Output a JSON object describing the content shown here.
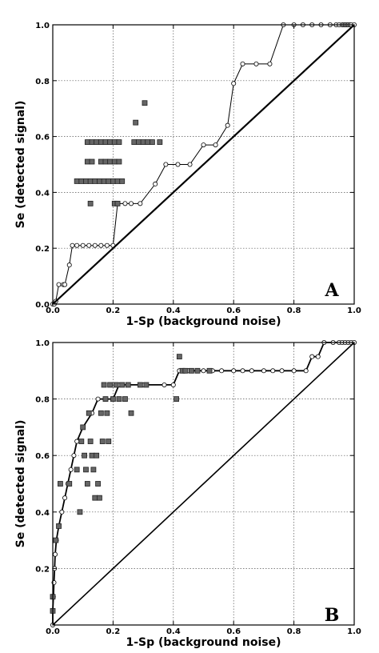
{
  "chart_data": [
    {
      "type": "scatter",
      "panel_label": "A",
      "xlabel": "1-Sp (background noise)",
      "ylabel": "Se (detected signal)",
      "xlim": [
        0,
        1
      ],
      "ylim": [
        0,
        1
      ],
      "xticks": [
        "0.0",
        "0.2",
        "0.4",
        "0.6",
        "0.8",
        "1.0"
      ],
      "yticks": [
        "0.0",
        "0.2",
        "0.4",
        "0.6",
        "0.8",
        "1.0"
      ],
      "grid": true,
      "series": [
        {
          "kind": "step-line",
          "points": [
            [
              0,
              0
            ],
            [
              0.005,
              0
            ],
            [
              0.01,
              0.01
            ],
            [
              0.02,
              0.07
            ],
            [
              0.035,
              0.07
            ],
            [
              0.04,
              0.07
            ],
            [
              0.055,
              0.14
            ],
            [
              0.065,
              0.21
            ],
            [
              0.08,
              0.21
            ],
            [
              0.1,
              0.21
            ],
            [
              0.12,
              0.21
            ],
            [
              0.14,
              0.21
            ],
            [
              0.16,
              0.21
            ],
            [
              0.18,
              0.21
            ],
            [
              0.2,
              0.21
            ],
            [
              0.215,
              0.36
            ],
            [
              0.24,
              0.36
            ],
            [
              0.26,
              0.36
            ],
            [
              0.29,
              0.36
            ],
            [
              0.34,
              0.43
            ],
            [
              0.375,
              0.5
            ],
            [
              0.415,
              0.5
            ],
            [
              0.455,
              0.5
            ],
            [
              0.5,
              0.57
            ],
            [
              0.54,
              0.57
            ],
            [
              0.58,
              0.64
            ],
            [
              0.6,
              0.79
            ],
            [
              0.63,
              0.86
            ],
            [
              0.675,
              0.86
            ],
            [
              0.72,
              0.86
            ],
            [
              0.765,
              1.0
            ],
            [
              0.8,
              1.0
            ],
            [
              0.83,
              1.0
            ],
            [
              0.86,
              1.0
            ],
            [
              0.89,
              1.0
            ],
            [
              0.92,
              1.0
            ],
            [
              0.94,
              1.0
            ],
            [
              0.95,
              1.0
            ],
            [
              0.96,
              1.0
            ],
            [
              0.965,
              1.0
            ],
            [
              0.97,
              1.0
            ],
            [
              0.975,
              1.0
            ],
            [
              0.98,
              1.0
            ],
            [
              0.985,
              1.0
            ],
            [
              0.99,
              1.0
            ],
            [
              1.0,
              1.0
            ]
          ]
        },
        {
          "kind": "diagonal",
          "points": [
            [
              0,
              0
            ],
            [
              1,
              1
            ]
          ]
        },
        {
          "kind": "squares",
          "points": [
            [
              0.305,
              0.72
            ],
            [
              0.275,
              0.65
            ],
            [
              0.115,
              0.58
            ],
            [
              0.13,
              0.58
            ],
            [
              0.145,
              0.58
            ],
            [
              0.16,
              0.58
            ],
            [
              0.175,
              0.58
            ],
            [
              0.19,
              0.58
            ],
            [
              0.205,
              0.58
            ],
            [
              0.22,
              0.58
            ],
            [
              0.27,
              0.58
            ],
            [
              0.285,
              0.58
            ],
            [
              0.3,
              0.58
            ],
            [
              0.315,
              0.58
            ],
            [
              0.33,
              0.58
            ],
            [
              0.355,
              0.58
            ],
            [
              0.115,
              0.51
            ],
            [
              0.13,
              0.51
            ],
            [
              0.16,
              0.51
            ],
            [
              0.175,
              0.51
            ],
            [
              0.19,
              0.51
            ],
            [
              0.205,
              0.51
            ],
            [
              0.22,
              0.51
            ],
            [
              0.08,
              0.44
            ],
            [
              0.095,
              0.44
            ],
            [
              0.11,
              0.44
            ],
            [
              0.125,
              0.44
            ],
            [
              0.14,
              0.44
            ],
            [
              0.155,
              0.44
            ],
            [
              0.17,
              0.44
            ],
            [
              0.185,
              0.44
            ],
            [
              0.2,
              0.44
            ],
            [
              0.215,
              0.44
            ],
            [
              0.23,
              0.44
            ],
            [
              0.125,
              0.36
            ],
            [
              0.205,
              0.36
            ],
            [
              0.215,
              0.36
            ]
          ]
        }
      ]
    },
    {
      "type": "scatter",
      "panel_label": "B",
      "xlabel": "1-Sp (background noise)",
      "ylabel": "Se (detected signal)",
      "xlim": [
        0,
        1
      ],
      "ylim": [
        0,
        1
      ],
      "xticks": [
        "0.0",
        "0.2",
        "0.4",
        "0.6",
        "0.8",
        "1.0"
      ],
      "yticks": [
        "0.2",
        "0.4",
        "0.6",
        "0.8",
        "1.0"
      ],
      "grid": true,
      "series": [
        {
          "kind": "curve",
          "points": [
            [
              0,
              0
            ],
            [
              0,
              0.05
            ],
            [
              0.002,
              0.1
            ],
            [
              0.004,
              0.15
            ],
            [
              0.006,
              0.2
            ],
            [
              0.008,
              0.25
            ],
            [
              0.012,
              0.3
            ],
            [
              0.02,
              0.35
            ],
            [
              0.03,
              0.4
            ],
            [
              0.04,
              0.45
            ],
            [
              0.05,
              0.5
            ],
            [
              0.06,
              0.55
            ],
            [
              0.07,
              0.6
            ],
            [
              0.08,
              0.65
            ],
            [
              0.1,
              0.7
            ],
            [
              0.13,
              0.75
            ],
            [
              0.15,
              0.8
            ],
            [
              0.2,
              0.8
            ],
            [
              0.22,
              0.85
            ],
            [
              0.3,
              0.85
            ],
            [
              0.37,
              0.85
            ],
            [
              0.4,
              0.85
            ],
            [
              0.42,
              0.9
            ],
            [
              0.45,
              0.9
            ],
            [
              0.5,
              0.9
            ],
            [
              0.53,
              0.9
            ],
            [
              0.56,
              0.9
            ],
            [
              0.6,
              0.9
            ],
            [
              0.63,
              0.9
            ],
            [
              0.66,
              0.9
            ],
            [
              0.7,
              0.9
            ],
            [
              0.73,
              0.9
            ],
            [
              0.76,
              0.9
            ],
            [
              0.8,
              0.9
            ],
            [
              0.84,
              0.9
            ],
            [
              0.86,
              0.95
            ],
            [
              0.88,
              0.95
            ],
            [
              0.9,
              1.0
            ],
            [
              0.93,
              1.0
            ],
            [
              0.95,
              1.0
            ],
            [
              0.96,
              1.0
            ],
            [
              0.97,
              1.0
            ],
            [
              0.98,
              1.0
            ],
            [
              0.99,
              1.0
            ],
            [
              1.0,
              1.0
            ]
          ]
        },
        {
          "kind": "diagonal",
          "points": [
            [
              0,
              0
            ],
            [
              1,
              1
            ]
          ]
        },
        {
          "kind": "squares",
          "points": [
            [
              0.0,
              0.05
            ],
            [
              0.0,
              0.1
            ],
            [
              0.01,
              0.3
            ],
            [
              0.02,
              0.35
            ],
            [
              0.025,
              0.5
            ],
            [
              0.055,
              0.5
            ],
            [
              0.08,
              0.55
            ],
            [
              0.09,
              0.4
            ],
            [
              0.095,
              0.65
            ],
            [
              0.1,
              0.7
            ],
            [
              0.105,
              0.6
            ],
            [
              0.11,
              0.55
            ],
            [
              0.115,
              0.5
            ],
            [
              0.12,
              0.75
            ],
            [
              0.125,
              0.65
            ],
            [
              0.13,
              0.6
            ],
            [
              0.135,
              0.55
            ],
            [
              0.14,
              0.45
            ],
            [
              0.145,
              0.6
            ],
            [
              0.15,
              0.5
            ],
            [
              0.155,
              0.45
            ],
            [
              0.16,
              0.75
            ],
            [
              0.165,
              0.65
            ],
            [
              0.17,
              0.85
            ],
            [
              0.175,
              0.8
            ],
            [
              0.18,
              0.75
            ],
            [
              0.185,
              0.65
            ],
            [
              0.19,
              0.85
            ],
            [
              0.2,
              0.8
            ],
            [
              0.21,
              0.85
            ],
            [
              0.22,
              0.8
            ],
            [
              0.23,
              0.85
            ],
            [
              0.24,
              0.8
            ],
            [
              0.25,
              0.85
            ],
            [
              0.26,
              0.75
            ],
            [
              0.29,
              0.85
            ],
            [
              0.31,
              0.85
            ],
            [
              0.41,
              0.8
            ],
            [
              0.42,
              0.95
            ],
            [
              0.43,
              0.9
            ],
            [
              0.44,
              0.9
            ],
            [
              0.46,
              0.9
            ],
            [
              0.48,
              0.9
            ],
            [
              0.52,
              0.9
            ]
          ]
        }
      ]
    }
  ]
}
